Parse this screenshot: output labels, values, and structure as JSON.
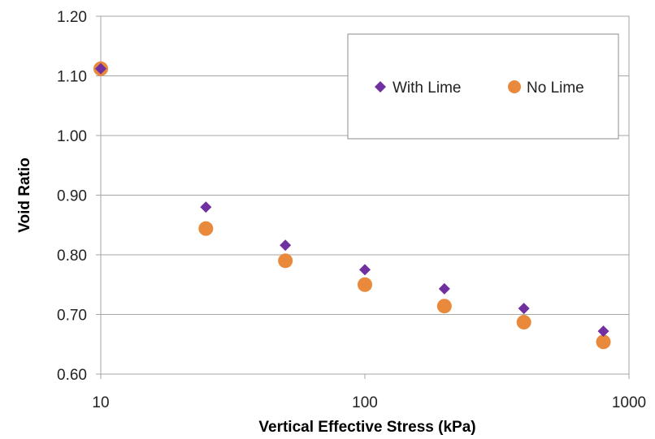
{
  "chart_data": {
    "type": "scatter",
    "title": "",
    "xlabel": "Vertical Effective Stress (kPa)",
    "ylabel": "Void Ratio",
    "xscale": "log",
    "xlim": [
      10,
      1000
    ],
    "ylim": [
      0.6,
      1.2
    ],
    "x_ticks": [
      10,
      100,
      1000
    ],
    "x_tick_labels": [
      "10",
      "100",
      "1000"
    ],
    "y_ticks": [
      0.6,
      0.7,
      0.8,
      0.9,
      1.0,
      1.1,
      1.2
    ],
    "y_tick_labels": [
      "0.60",
      "0.70",
      "0.80",
      "0.90",
      "1.00",
      "1.10",
      "1.20"
    ],
    "grid": "horizontal",
    "legend_position": "top-right",
    "series": [
      {
        "name": "With Lime",
        "marker": "diamond",
        "color": "#7030a0",
        "x": [
          10,
          25,
          50,
          100,
          200,
          400,
          800
        ],
        "y": [
          1.112,
          0.88,
          0.816,
          0.775,
          0.743,
          0.71,
          0.672
        ]
      },
      {
        "name": "No Lime",
        "marker": "circle",
        "color": "#e8893c",
        "x": [
          10,
          25,
          50,
          100,
          200,
          400,
          800
        ],
        "y": [
          1.112,
          0.844,
          0.79,
          0.75,
          0.714,
          0.687,
          0.654
        ]
      }
    ]
  }
}
